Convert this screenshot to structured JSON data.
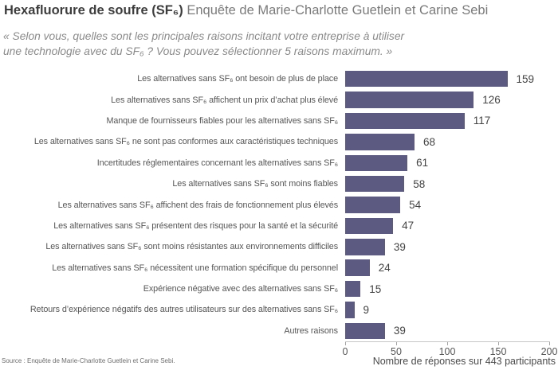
{
  "header": {
    "title_bold": "Hexafluorure de soufre (SF₆)",
    "title_rest": " Enquête de Marie-Charlotte Guetlein et Carine Sebi",
    "quote_line1": "« Selon vous, quelles sont les principales raisons incitant votre entreprise à utiliser",
    "quote_line2": "une technologie avec du SF₆ ? Vous pouvez sélectionner 5 raisons maximum. »"
  },
  "chart_data": {
    "type": "bar",
    "orientation": "horizontal",
    "title": "Hexafluorure de soufre (SF₆) Enquête de Marie-Charlotte Guetlein et Carine Sebi",
    "categories": [
      "Les alternatives sans SF₆ ont besoin de plus de place",
      "Les alternatives sans SF₆ affichent un prix d’achat plus élevé",
      "Manque de fournisseurs fiables pour les alternatives sans SF₆",
      "Les alternatives sans SF₆ ne sont pas conformes aux caractéristiques techniques",
      "Incertitudes réglementaires concernant les alternatives sans SF₆",
      "Les alternatives sans SF₆ sont moins fiables",
      "Les alternatives sans SF₆ affichent des frais de fonctionnement plus élevés",
      "Les alternatives sans SF₆ présentent des risques pour la santé et la sécurité",
      "Les alternatives sans SF₆ sont moins résistantes aux environnements difficiles",
      "Les alternatives sans SF₆ nécessitent une formation spécifique du personnel",
      "Expérience négative avec des alternatives sans SF₆",
      "Retours d’expérience négatifs des autres utilisateurs sur des alternatives sans SF₆",
      "Autres raisons"
    ],
    "values": [
      159,
      126,
      117,
      68,
      61,
      58,
      54,
      47,
      39,
      24,
      15,
      9,
      39
    ],
    "xlabel": "Nombre de réponses sur 443 participants",
    "x_ticks": [
      0,
      50,
      100,
      150,
      200
    ],
    "xlim": [
      0,
      200
    ],
    "bar_color": "#5d5a82",
    "grid": false,
    "legend": null
  },
  "footer": {
    "source": "Source : Enquête de Marie-Charlotte Guetlein et Carine Sebi."
  }
}
